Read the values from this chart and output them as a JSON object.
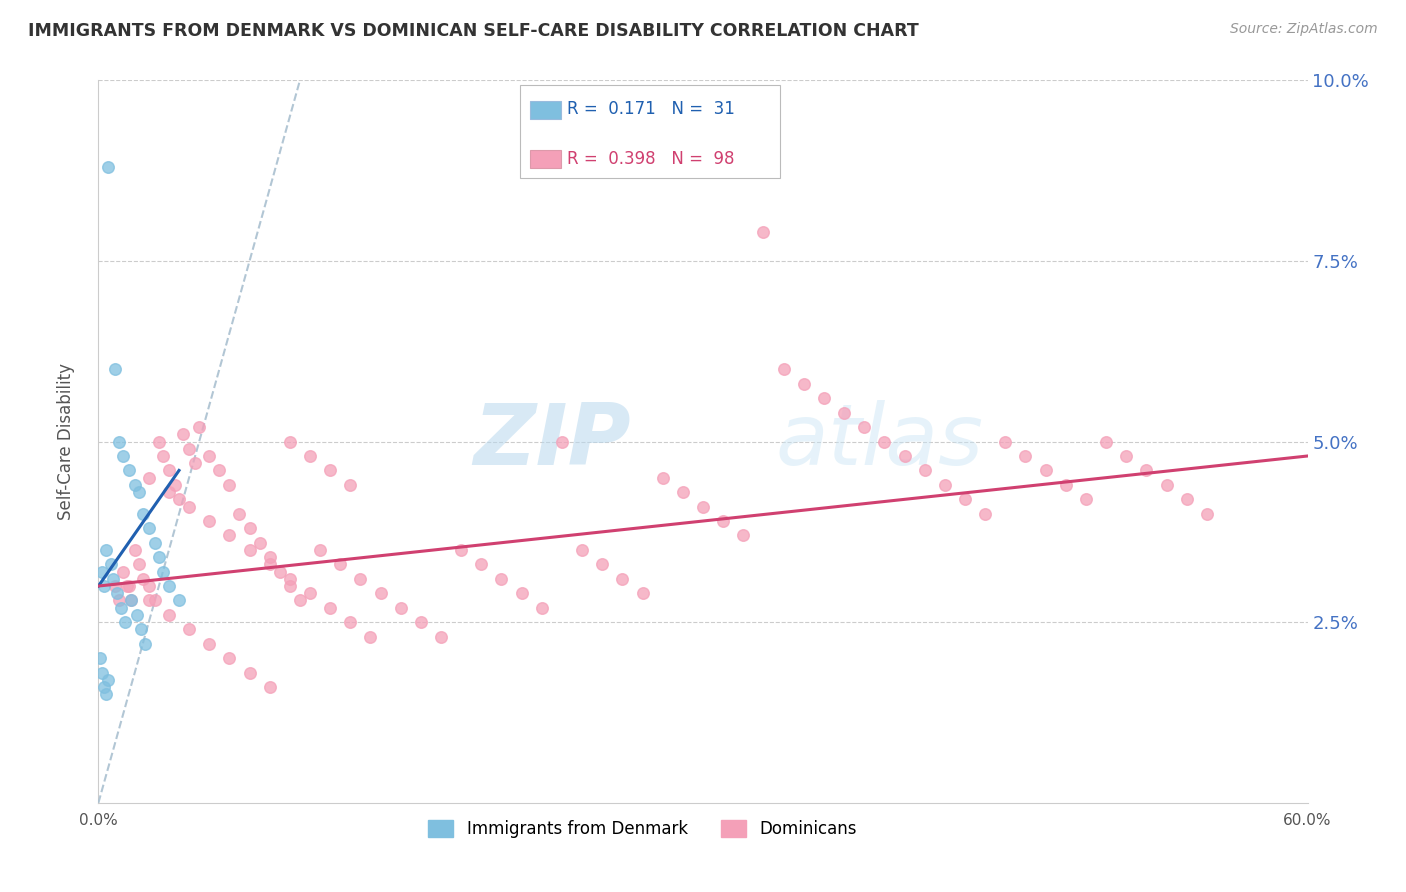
{
  "title": "IMMIGRANTS FROM DENMARK VS DOMINICAN SELF-CARE DISABILITY CORRELATION CHART",
  "source": "Source: ZipAtlas.com",
  "ylabel": "Self-Care Disability",
  "xlim": [
    0.0,
    0.6
  ],
  "ylim": [
    0.0,
    0.1
  ],
  "yticks_right": [
    0.025,
    0.05,
    0.075,
    0.1
  ],
  "ytick_labels_right": [
    "2.5%",
    "5.0%",
    "7.5%",
    "10.0%"
  ],
  "denmark_color": "#7fbfdf",
  "dominican_color": "#f4a0b8",
  "denmark_trend_color": "#2060b0",
  "dominican_trend_color": "#d04070",
  "reference_line_color": "#aac0d0",
  "denmark_R": 0.171,
  "denmark_N": 31,
  "dominican_R": 0.398,
  "dominican_N": 98,
  "denmark_x": [
    0.005,
    0.008,
    0.01,
    0.012,
    0.015,
    0.018,
    0.02,
    0.022,
    0.025,
    0.028,
    0.002,
    0.003,
    0.004,
    0.006,
    0.007,
    0.009,
    0.011,
    0.013,
    0.016,
    0.019,
    0.021,
    0.023,
    0.03,
    0.032,
    0.035,
    0.04,
    0.001,
    0.002,
    0.003,
    0.004,
    0.005
  ],
  "denmark_y": [
    0.088,
    0.06,
    0.05,
    0.048,
    0.046,
    0.044,
    0.043,
    0.04,
    0.038,
    0.036,
    0.032,
    0.03,
    0.035,
    0.033,
    0.031,
    0.029,
    0.027,
    0.025,
    0.028,
    0.026,
    0.024,
    0.022,
    0.034,
    0.032,
    0.03,
    0.028,
    0.02,
    0.018,
    0.016,
    0.015,
    0.017
  ],
  "dominican_x": [
    0.008,
    0.01,
    0.012,
    0.014,
    0.016,
    0.018,
    0.02,
    0.022,
    0.025,
    0.028,
    0.03,
    0.032,
    0.035,
    0.038,
    0.04,
    0.042,
    0.045,
    0.048,
    0.05,
    0.055,
    0.06,
    0.065,
    0.07,
    0.075,
    0.08,
    0.085,
    0.09,
    0.095,
    0.1,
    0.11,
    0.12,
    0.13,
    0.14,
    0.15,
    0.16,
    0.17,
    0.18,
    0.19,
    0.2,
    0.21,
    0.22,
    0.23,
    0.24,
    0.25,
    0.26,
    0.27,
    0.28,
    0.29,
    0.3,
    0.31,
    0.32,
    0.33,
    0.34,
    0.35,
    0.36,
    0.37,
    0.38,
    0.39,
    0.4,
    0.41,
    0.42,
    0.43,
    0.44,
    0.45,
    0.46,
    0.47,
    0.48,
    0.49,
    0.5,
    0.51,
    0.52,
    0.53,
    0.54,
    0.55,
    0.025,
    0.035,
    0.045,
    0.055,
    0.065,
    0.075,
    0.085,
    0.095,
    0.105,
    0.115,
    0.125,
    0.135,
    0.015,
    0.025,
    0.035,
    0.045,
    0.055,
    0.065,
    0.075,
    0.085,
    0.095,
    0.105,
    0.115,
    0.125
  ],
  "dominican_y": [
    0.03,
    0.028,
    0.032,
    0.03,
    0.028,
    0.035,
    0.033,
    0.031,
    0.03,
    0.028,
    0.05,
    0.048,
    0.046,
    0.044,
    0.042,
    0.051,
    0.049,
    0.047,
    0.052,
    0.048,
    0.046,
    0.044,
    0.04,
    0.038,
    0.036,
    0.034,
    0.032,
    0.03,
    0.028,
    0.035,
    0.033,
    0.031,
    0.029,
    0.027,
    0.025,
    0.023,
    0.035,
    0.033,
    0.031,
    0.029,
    0.027,
    0.05,
    0.035,
    0.033,
    0.031,
    0.029,
    0.045,
    0.043,
    0.041,
    0.039,
    0.037,
    0.079,
    0.06,
    0.058,
    0.056,
    0.054,
    0.052,
    0.05,
    0.048,
    0.046,
    0.044,
    0.042,
    0.04,
    0.05,
    0.048,
    0.046,
    0.044,
    0.042,
    0.05,
    0.048,
    0.046,
    0.044,
    0.042,
    0.04,
    0.045,
    0.043,
    0.041,
    0.039,
    0.037,
    0.035,
    0.033,
    0.031,
    0.029,
    0.027,
    0.025,
    0.023,
    0.03,
    0.028,
    0.026,
    0.024,
    0.022,
    0.02,
    0.018,
    0.016,
    0.05,
    0.048,
    0.046,
    0.044
  ],
  "dk_trend_x": [
    0.0,
    0.04
  ],
  "dk_trend_y": [
    0.03,
    0.046
  ],
  "do_trend_x": [
    0.0,
    0.6
  ],
  "do_trend_y": [
    0.03,
    0.048
  ],
  "ref_line_x": [
    0.0,
    0.1
  ],
  "ref_line_y": [
    0.0,
    0.1
  ],
  "watermark_zip": "ZIP",
  "watermark_atlas": "atlas",
  "background_color": "#ffffff",
  "grid_color": "#cccccc"
}
